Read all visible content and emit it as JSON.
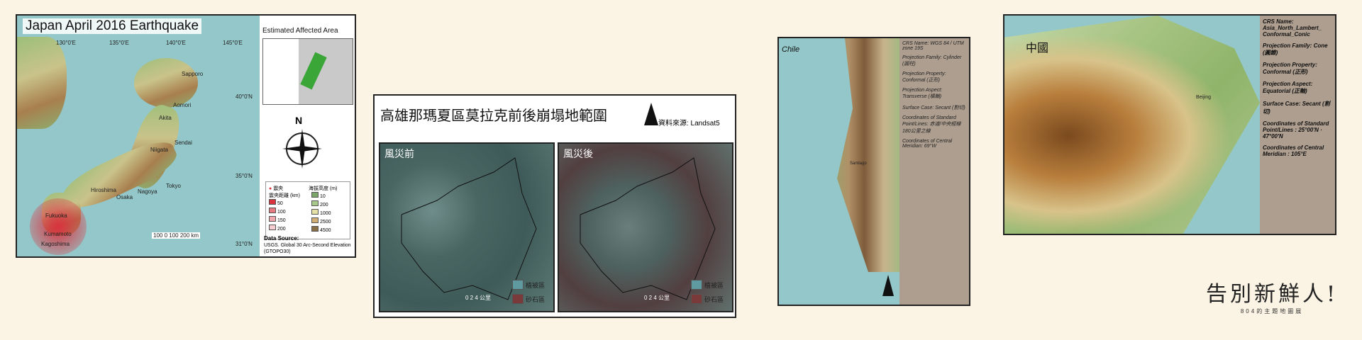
{
  "panel1": {
    "title": "Japan April 2016 Earthquake",
    "inset_title": "Estimated Affected Area",
    "north": "N",
    "legend": {
      "epicenter": "震央",
      "distance_header": "震央距離 (km)",
      "elevation_header": "海拔高度 (m)",
      "distances": [
        "50",
        "100",
        "150",
        "200"
      ],
      "elevations": [
        "10",
        "200",
        "1000",
        "2500",
        "4500"
      ]
    },
    "lon_labels": [
      "130°0'E",
      "135°0'E",
      "140°0'E",
      "145°0'E"
    ],
    "lat_labels": [
      "40°0'N",
      "35°0'N",
      "31°0'N"
    ],
    "cities": [
      "Sapporo",
      "Aomori",
      "Akita",
      "Sendai",
      "Niigata",
      "Tokyo",
      "Nagoya",
      "Osaka",
      "Hiroshima",
      "Fukuoka",
      "Kumamoto",
      "Kagoshima"
    ],
    "scale": "100   0   100  200 km",
    "source_label": "Data Source:",
    "source": "USGS. Global 30 Arc-Second Elevation (GTOPO30)"
  },
  "panel2": {
    "title": "高雄那瑪夏區莫拉克前後崩塌地範圍",
    "data_source": "資料來源: Landsat5",
    "before_label": "風災前",
    "after_label": "風災後",
    "scale": "0   2   4 公里",
    "legend_forest": "植被區",
    "legend_rock": "砂石區"
  },
  "panel3": {
    "country": "Chile",
    "city": "Santiago",
    "info": [
      "CRS Name: WGS 84 / UTM zone 19S",
      "Projection Family: Cylinder (圓柱)",
      "Projection Property: Conformal (正形)",
      "Projection Aspect: Transverse (橫軸)",
      "Surface Case: Secant (割切)",
      "Coordinates of Standard Point/Lines: 赤道/中央經線180公里之線",
      "Coordinates of Central Meridian: 69°W"
    ]
  },
  "panel4": {
    "country": "中國",
    "city": "Beijing",
    "info": [
      "CRS Name: Asia_North_Lambert_ Conformal_Conic",
      "Projection Family: Cone (圓錐)",
      "Projection Property: Conformal (正形)",
      "Projection Aspect: Equatorial (正軸)",
      "Surface Case: Secant (割切)",
      "Coordinates of Standard Point/Lines : 25°00'N · 47°00'N",
      "Coordinates of Central Meridian : 105°E"
    ]
  },
  "logo": {
    "title": "告別新鮮人!",
    "subtitle": "804的主題地圖展"
  },
  "colors": {
    "background": "#fbf3e3",
    "sea": "#94c7c9",
    "info_panel": "#ad9e8f",
    "epicenter": "#d9333f"
  }
}
